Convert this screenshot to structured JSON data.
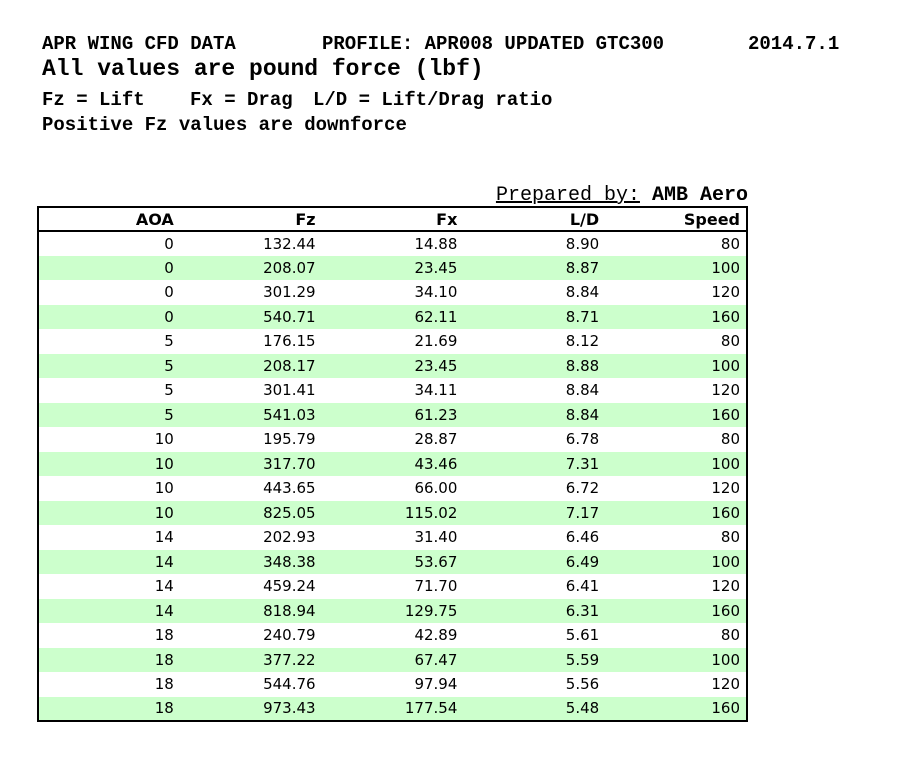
{
  "header": {
    "title": "APR WING CFD DATA",
    "profile": "PROFILE: APR008 UPDATED GTC300",
    "date": "2014.7.1",
    "subtitle": "All values are pound force (lbf)",
    "legend": {
      "fz": "Fz = Lift",
      "fx": "Fx = Drag",
      "ld": "L/D = Lift/Drag ratio"
    },
    "note": "Positive Fz values are downforce",
    "prepared_by_label": "Prepared by:",
    "prepared_by_value": "AMB Aero"
  },
  "table": {
    "columns": [
      "AOA",
      "Fz",
      "Fx",
      "L/D",
      "Speed"
    ],
    "rows": [
      [
        "0",
        "132.44",
        "14.88",
        "8.90",
        "80"
      ],
      [
        "0",
        "208.07",
        "23.45",
        "8.87",
        "100"
      ],
      [
        "0",
        "301.29",
        "34.10",
        "8.84",
        "120"
      ],
      [
        "0",
        "540.71",
        "62.11",
        "8.71",
        "160"
      ],
      [
        "5",
        "176.15",
        "21.69",
        "8.12",
        "80"
      ],
      [
        "5",
        "208.17",
        "23.45",
        "8.88",
        "100"
      ],
      [
        "5",
        "301.41",
        "34.11",
        "8.84",
        "120"
      ],
      [
        "5",
        "541.03",
        "61.23",
        "8.84",
        "160"
      ],
      [
        "10",
        "195.79",
        "28.87",
        "6.78",
        "80"
      ],
      [
        "10",
        "317.70",
        "43.46",
        "7.31",
        "100"
      ],
      [
        "10",
        "443.65",
        "66.00",
        "6.72",
        "120"
      ],
      [
        "10",
        "825.05",
        "115.02",
        "7.17",
        "160"
      ],
      [
        "14",
        "202.93",
        "31.40",
        "6.46",
        "80"
      ],
      [
        "14",
        "348.38",
        "53.67",
        "6.49",
        "100"
      ],
      [
        "14",
        "459.24",
        "71.70",
        "6.41",
        "120"
      ],
      [
        "14",
        "818.94",
        "129.75",
        "6.31",
        "160"
      ],
      [
        "18",
        "240.79",
        "42.89",
        "5.61",
        "80"
      ],
      [
        "18",
        "377.22",
        "67.47",
        "5.59",
        "100"
      ],
      [
        "18",
        "544.76",
        "97.94",
        "5.56",
        "120"
      ],
      [
        "18",
        "973.43",
        "177.54",
        "5.48",
        "160"
      ]
    ]
  },
  "colors": {
    "row_alt": "#ccffcc",
    "border": "#000000",
    "text": "#000000"
  }
}
